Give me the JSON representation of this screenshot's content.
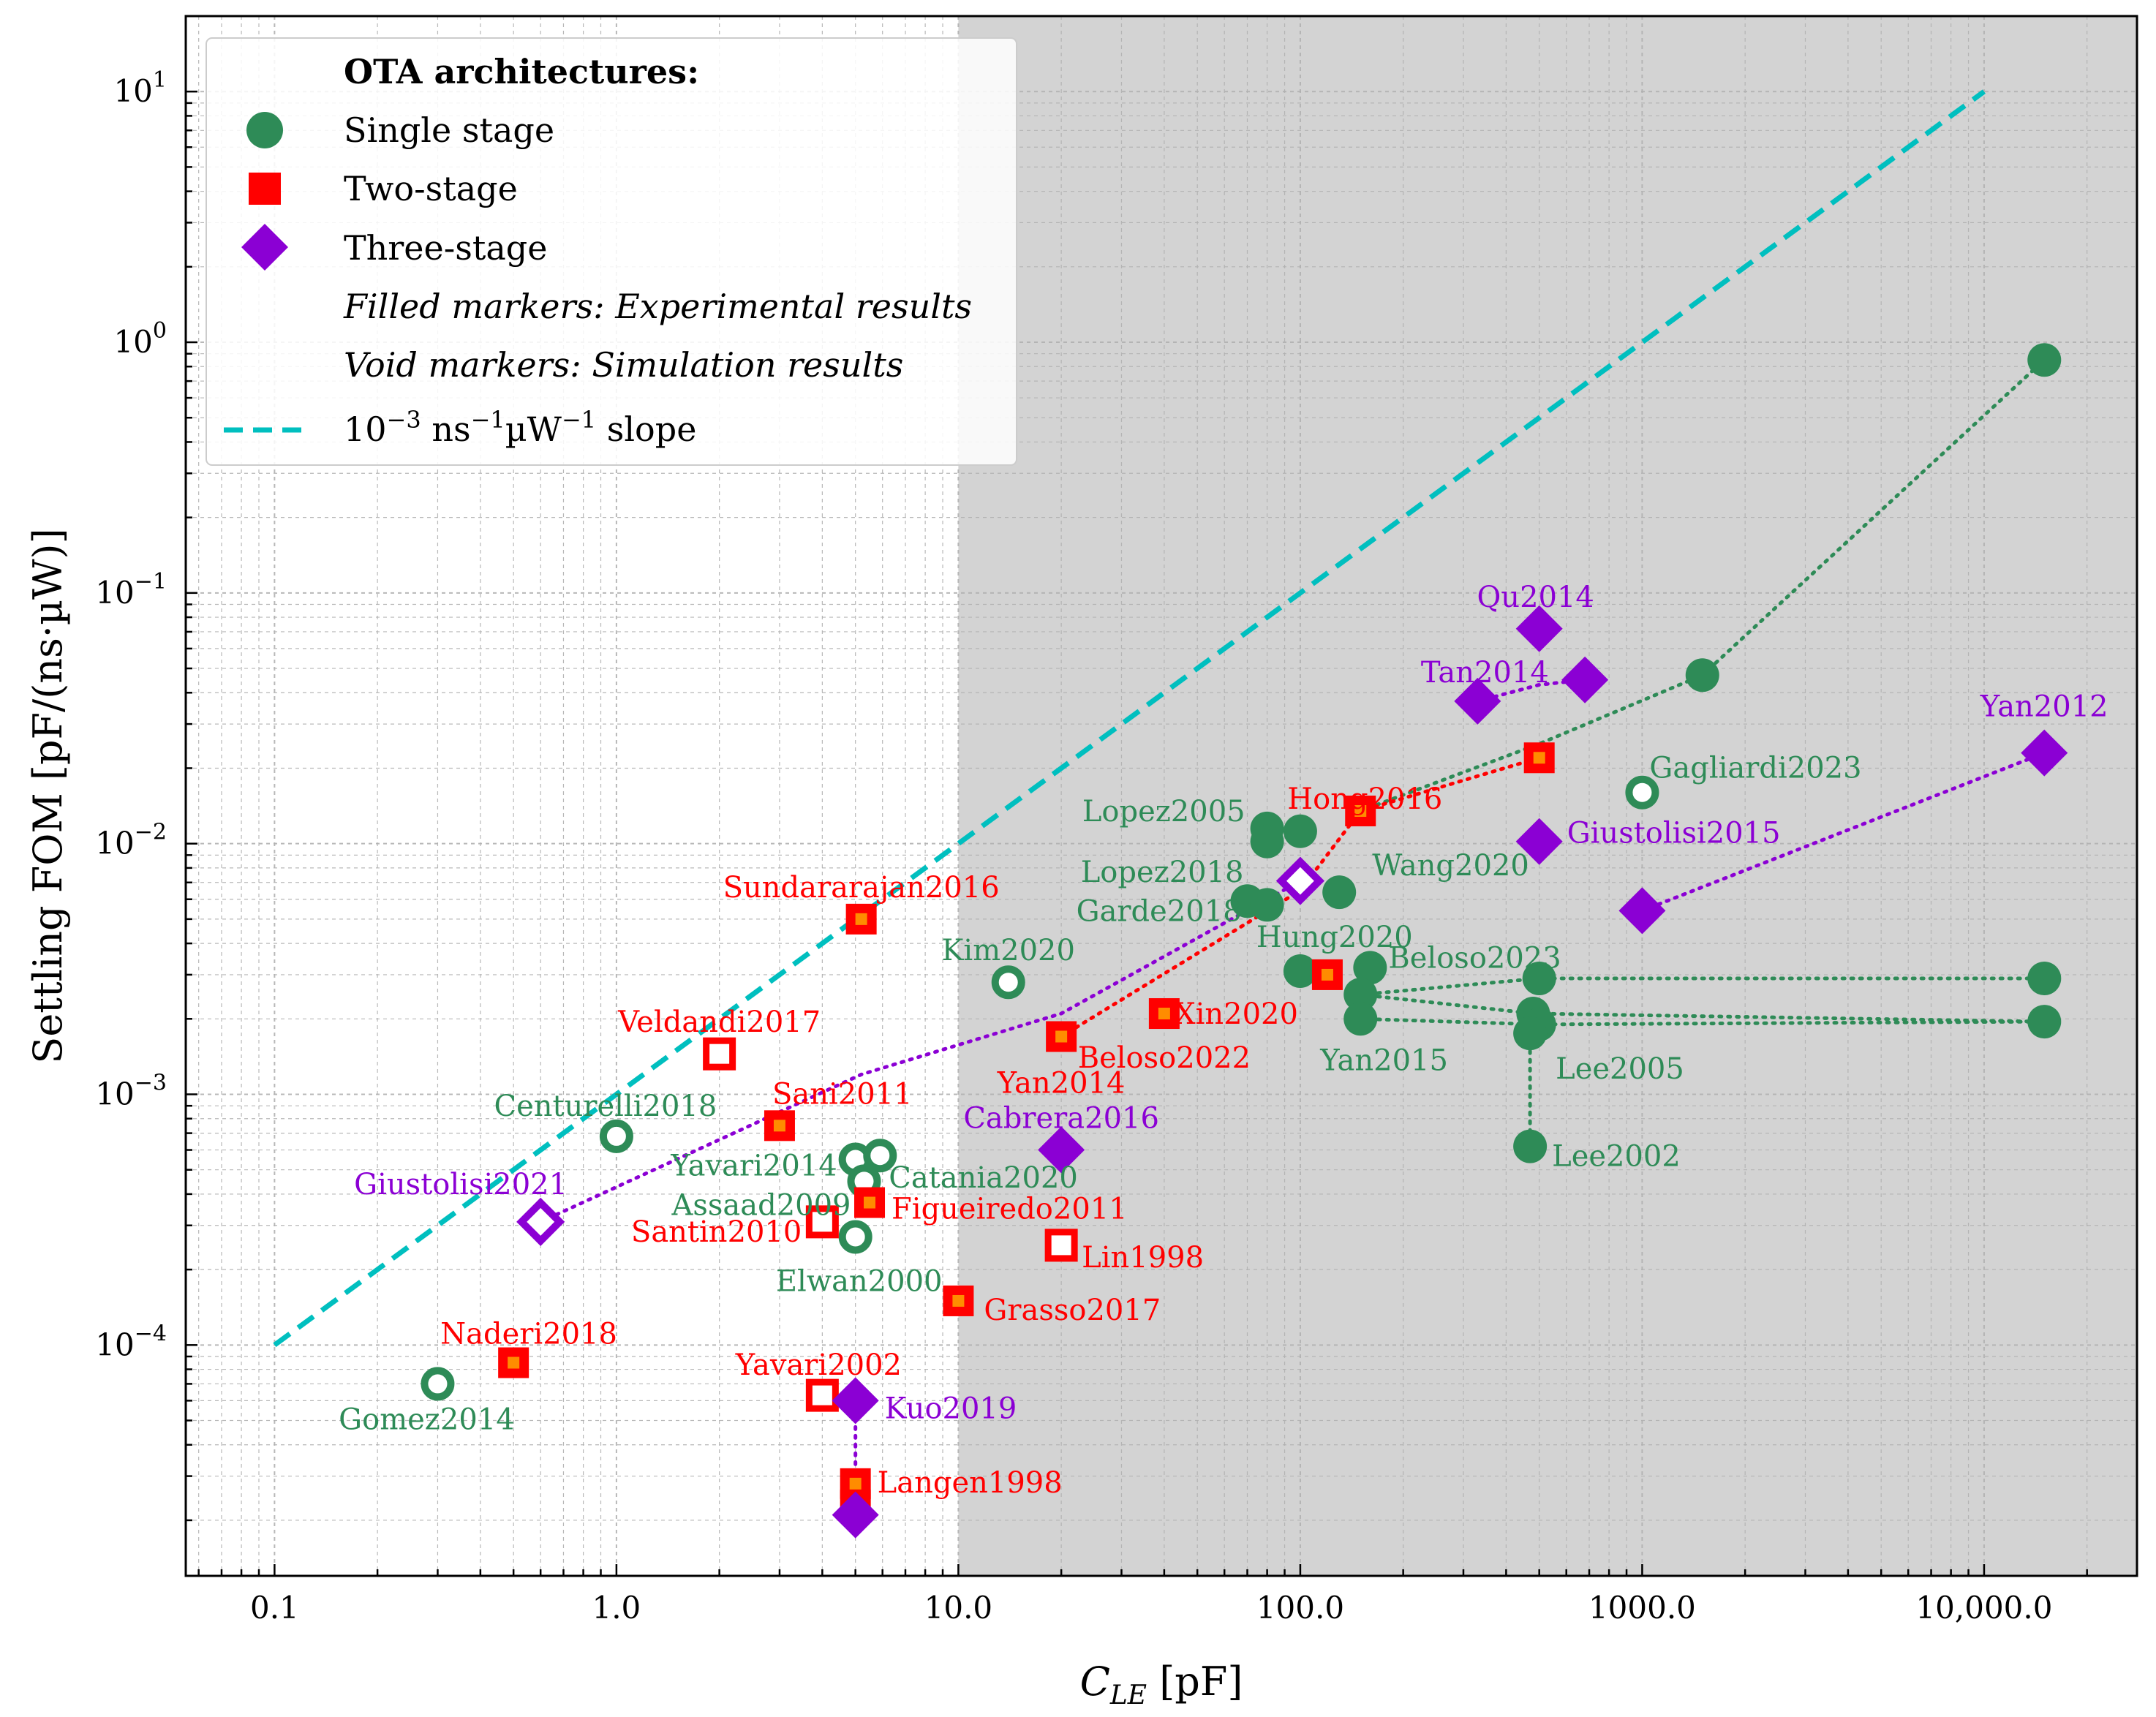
{
  "chart_data": {
    "type": "scatter",
    "xlabel": "C_LE [pF]",
    "xlabel_main": "C",
    "xlabel_sub": "LE",
    "xlabel_unit": " [pF]",
    "ylabel": "Settling FOM [pF/(ns·µW)]",
    "xscale": "log",
    "yscale": "log",
    "xlim": [
      0.055,
      28000
    ],
    "ylim": [
      1.2e-05,
      20
    ],
    "shaded_region_x": [
      10,
      28000
    ],
    "shade_color": "#d3d3d3",
    "x_ticks": [
      {
        "value": 0.1,
        "label": "0.1"
      },
      {
        "value": 1,
        "label": "1.0"
      },
      {
        "value": 10,
        "label": "10.0"
      },
      {
        "value": 100,
        "label": "100.0"
      },
      {
        "value": 1000,
        "label": "1000.0"
      },
      {
        "value": 10000,
        "label": "10,000.0"
      }
    ],
    "y_ticks": [
      {
        "value": 0.0001,
        "base": "10",
        "exp": "−4"
      },
      {
        "value": 0.001,
        "base": "10",
        "exp": "−3"
      },
      {
        "value": 0.01,
        "base": "10",
        "exp": "−2"
      },
      {
        "value": 0.1,
        "base": "10",
        "exp": "−1"
      },
      {
        "value": 1,
        "base": "10",
        "exp": "0"
      },
      {
        "value": 10,
        "base": "10",
        "exp": "1"
      }
    ],
    "colors": {
      "single": "#2e8b57",
      "two": "#ff0000",
      "three": "#8b00d4",
      "slope": "#00bfbf",
      "two_inner": "#ff8c00"
    },
    "slope_line": {
      "x": [
        0.1,
        10000
      ],
      "y": [
        0.0001,
        10
      ],
      "label": "10⁻³ ns⁻¹µW⁻¹ slope"
    },
    "legend": {
      "title": "OTA architectures:",
      "single": "Single stage",
      "two": "Two-stage",
      "three": "Three-stage",
      "filled_note": "Filled markers: Experimental results",
      "void_note": "Void markers: Simulation results",
      "slope_prefix": "10",
      "slope_exp1": "−3",
      "slope_mid": " ns",
      "slope_exp2": "−1",
      "slope_mid2": "µW",
      "slope_exp3": "−1",
      "slope_suffix": " slope"
    },
    "series": [
      {
        "name": "Single stage",
        "points": [
          {
            "label": "Gomez2014",
            "x": 0.3,
            "y": 7e-05,
            "filled": false
          },
          {
            "label": "Centurelli2018",
            "x": 1.0,
            "y": 0.00068,
            "filled": false
          },
          {
            "label": "Yavari2014",
            "x": 5.0,
            "y": 0.00055,
            "filled": false
          },
          {
            "label": "Catania2020",
            "x": 5.9,
            "y": 0.00057,
            "filled": false
          },
          {
            "label": "Assaad2009",
            "x": 5.3,
            "y": 0.00045,
            "filled": false
          },
          {
            "label": "Elwan2000",
            "x": 5.0,
            "y": 0.00027,
            "filled": false
          },
          {
            "label": "Kim2020",
            "x": 14,
            "y": 0.0028,
            "filled": false
          },
          {
            "label": "Gagliardi2023",
            "x": 1000,
            "y": 0.016,
            "filled": false
          },
          {
            "label": "Lopez2005",
            "x": 80,
            "y": 0.0115,
            "filled": true
          },
          {
            "label": "",
            "x": 100,
            "y": 0.0112,
            "filled": true
          },
          {
            "label": "",
            "x": 80,
            "y": 0.0102,
            "filled": true
          },
          {
            "label": "Lopez2018",
            "x": 70,
            "y": 0.0059,
            "filled": true
          },
          {
            "label": "Garde2018",
            "x": 80,
            "y": 0.0057,
            "filled": true
          },
          {
            "label": "Wang2020",
            "x": 130,
            "y": 0.0064,
            "filled": true
          },
          {
            "label": "Hung2020",
            "x": 100,
            "y": 0.0031,
            "filled": true
          },
          {
            "label": "Beloso2023",
            "x": 160,
            "y": 0.0032,
            "filled": true
          },
          {
            "label": "",
            "x": 150,
            "y": 0.0025,
            "filled": true
          },
          {
            "label": "Yan2015",
            "x": 150,
            "y": 0.002,
            "filled": true
          },
          {
            "label": "",
            "x": 500,
            "y": 0.0029,
            "filled": true
          },
          {
            "label": "",
            "x": 480,
            "y": 0.0021,
            "filled": true
          },
          {
            "label": "",
            "x": 500,
            "y": 0.0019,
            "filled": true
          },
          {
            "label": "Lee2005",
            "x": 470,
            "y": 0.00175,
            "filled": true
          },
          {
            "label": "Lee2002",
            "x": 470,
            "y": 0.00062,
            "filled": true
          },
          {
            "label": "",
            "x": 1500,
            "y": 0.047,
            "filled": true
          },
          {
            "label": "",
            "x": 15000,
            "y": 0.85,
            "filled": true
          },
          {
            "label": "",
            "x": 15000,
            "y": 0.0029,
            "filled": true
          },
          {
            "label": "",
            "x": 15000,
            "y": 0.00195,
            "filled": true
          }
        ]
      },
      {
        "name": "Two-stage",
        "points": [
          {
            "label": "Naderi2018",
            "x": 0.5,
            "y": 8.5e-05,
            "filled": true
          },
          {
            "label": "Veldandi2017",
            "x": 2.0,
            "y": 0.00145,
            "filled": false
          },
          {
            "label": "Sani2011",
            "x": 3.0,
            "y": 0.00075,
            "filled": true
          },
          {
            "label": "Santin2010",
            "x": 4.0,
            "y": 0.00031,
            "filled": false
          },
          {
            "label": "Yavari2002",
            "x": 4.0,
            "y": 6.3e-05,
            "filled": false
          },
          {
            "label": "Sundararajan2016",
            "x": 5.2,
            "y": 0.005,
            "filled": true
          },
          {
            "label": "Figueiredo2011",
            "x": 5.5,
            "y": 0.00037,
            "filled": true
          },
          {
            "label": "Langen1998",
            "x": 5.0,
            "y": 2.8e-05,
            "filled": true
          },
          {
            "label": "",
            "x": 5.0,
            "y": 2.3e-05,
            "filled": true
          },
          {
            "label": "Grasso2017",
            "x": 10,
            "y": 0.00015,
            "filled": true
          },
          {
            "label": "Lin1998",
            "x": 20,
            "y": 0.00025,
            "filled": false
          },
          {
            "label": "Yan2014",
            "x": 20,
            "y": 0.0017,
            "filled": true
          },
          {
            "label": "Beloso2022",
            "x": 40,
            "y": 0.0021,
            "filled": true
          },
          {
            "label": "Xin2020",
            "x": 120,
            "y": 0.003,
            "filled": true
          },
          {
            "label": "Hong2016",
            "x": 150,
            "y": 0.0135,
            "filled": true
          },
          {
            "label": "",
            "x": 500,
            "y": 0.022,
            "filled": true
          }
        ]
      },
      {
        "name": "Three-stage",
        "points": [
          {
            "label": "Giustolisi2021",
            "x": 0.6,
            "y": 0.00031,
            "filled": false
          },
          {
            "label": "Kuo2019",
            "x": 5.0,
            "y": 6e-05,
            "filled": true
          },
          {
            "label": "",
            "x": 5.0,
            "y": 2.1e-05,
            "filled": true
          },
          {
            "label": "Cabrera2016",
            "x": 20,
            "y": 0.0006,
            "filled": true
          },
          {
            "label": "",
            "x": 100,
            "y": 0.0071,
            "filled": false
          },
          {
            "label": "Qu2014",
            "x": 500,
            "y": 0.072,
            "filled": true
          },
          {
            "label": "Tan2014",
            "x": 330,
            "y": 0.037,
            "filled": true
          },
          {
            "label": "",
            "x": 680,
            "y": 0.045,
            "filled": true
          },
          {
            "label": "Giustolisi2015",
            "x": 500,
            "y": 0.0102,
            "filled": true
          },
          {
            "label": "",
            "x": 1000,
            "y": 0.0054,
            "filled": true
          },
          {
            "label": "Yan2012",
            "x": 15000,
            "y": 0.023,
            "filled": true
          }
        ]
      }
    ],
    "dotted_links": [
      {
        "series": "single",
        "points": [
          [
            150,
            0.0135
          ],
          [
            500,
            0.025
          ],
          [
            1500,
            0.047
          ],
          [
            15000,
            0.85
          ]
        ]
      },
      {
        "series": "single",
        "points": [
          [
            80,
            0.0115
          ],
          [
            80,
            0.0102
          ]
        ]
      },
      {
        "series": "single",
        "points": [
          [
            150,
            0.0025
          ],
          [
            500,
            0.0029
          ],
          [
            15000,
            0.0029
          ]
        ]
      },
      {
        "series": "single",
        "points": [
          [
            150,
            0.002
          ],
          [
            500,
            0.0019
          ],
          [
            15000,
            0.00195
          ]
        ]
      },
      {
        "series": "single",
        "points": [
          [
            150,
            0.0025
          ],
          [
            480,
            0.0021
          ],
          [
            15000,
            0.00195
          ]
        ]
      },
      {
        "series": "single",
        "points": [
          [
            470,
            0.00175
          ],
          [
            470,
            0.00062
          ]
        ]
      },
      {
        "series": "two",
        "points": [
          [
            20,
            0.0017
          ],
          [
            100,
            0.0065
          ],
          [
            150,
            0.0135
          ],
          [
            500,
            0.022
          ]
        ]
      },
      {
        "series": "three",
        "points": [
          [
            0.6,
            0.00031
          ],
          [
            5.2,
            0.0012
          ],
          [
            20,
            0.0021
          ],
          [
            100,
            0.0071
          ]
        ]
      },
      {
        "series": "three",
        "points": [
          [
            330,
            0.037
          ],
          [
            500,
            0.043
          ],
          [
            680,
            0.045
          ]
        ]
      },
      {
        "series": "three",
        "points": [
          [
            1000,
            0.0054
          ],
          [
            15000,
            0.023
          ]
        ]
      },
      {
        "series": "three",
        "points": [
          [
            5.0,
            6e-05
          ],
          [
            5.0,
            2.1e-05
          ]
        ]
      }
    ],
    "label_positions_note": "labels are rendered next to their points"
  }
}
